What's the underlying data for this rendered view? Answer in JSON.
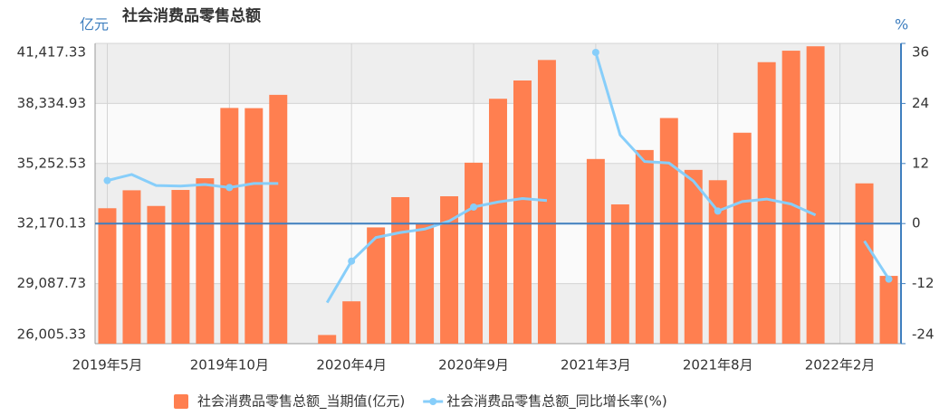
{
  "chart_data": {
    "type": "combo",
    "title": "社会消费品零售总额",
    "y_unit_label": "亿元",
    "y2_unit_label": "%",
    "categories": [
      "2019年5月",
      null,
      null,
      null,
      null,
      "2019年10月",
      null,
      null,
      null,
      null,
      "2020年4月",
      null,
      null,
      null,
      null,
      "2020年9月",
      null,
      null,
      null,
      null,
      "2021年3月",
      null,
      null,
      null,
      null,
      "2021年8月",
      null,
      null,
      null,
      null,
      "2022年2月",
      null,
      null
    ],
    "series": [
      {
        "name": "社会消费品零售总额_当期值(亿元)",
        "type": "bar",
        "color": "#ff7f50",
        "values": [
          32956,
          33878,
          33073,
          33896,
          34495,
          38104,
          38094,
          38777,
          null,
          26450,
          28178,
          31973,
          33526,
          32203,
          33571,
          35295,
          38576,
          39514,
          40566,
          null,
          35484,
          33153,
          35945,
          37586,
          34925,
          34395,
          36833,
          40454,
          41043,
          41269,
          null,
          34233,
          29483
        ]
      },
      {
        "name": "社会消费品零售总额_同比增长率(%)",
        "type": "line",
        "axis": "y2",
        "color": "#87cefa",
        "values": [
          8.6,
          9.8,
          7.6,
          7.5,
          7.8,
          7.2,
          8.0,
          8.0,
          null,
          -15.8,
          -7.5,
          -2.8,
          -1.8,
          -1.1,
          0.5,
          3.3,
          4.3,
          5.0,
          4.6,
          null,
          34.2,
          17.7,
          12.4,
          12.1,
          8.5,
          2.5,
          4.4,
          4.9,
          3.9,
          1.7,
          null,
          -3.5,
          -11.1
        ]
      }
    ],
    "ylim": [
      26005.33,
      41417.33
    ],
    "yticks": [
      {
        "value": 26005.33,
        "label": "26,005.33"
      },
      {
        "value": 29087.73,
        "label": "29,087.73"
      },
      {
        "value": 32170.13,
        "label": "32,170.13"
      },
      {
        "value": 35252.53,
        "label": "35,252.53"
      },
      {
        "value": 38334.93,
        "label": "38,334.93"
      },
      {
        "value": 41417.33,
        "label": "41,417.33"
      }
    ],
    "y2lim": [
      -24,
      36
    ],
    "y2ticks": [
      -24,
      -12,
      0,
      12,
      24,
      36
    ],
    "grid": true,
    "legend": "bottom"
  }
}
